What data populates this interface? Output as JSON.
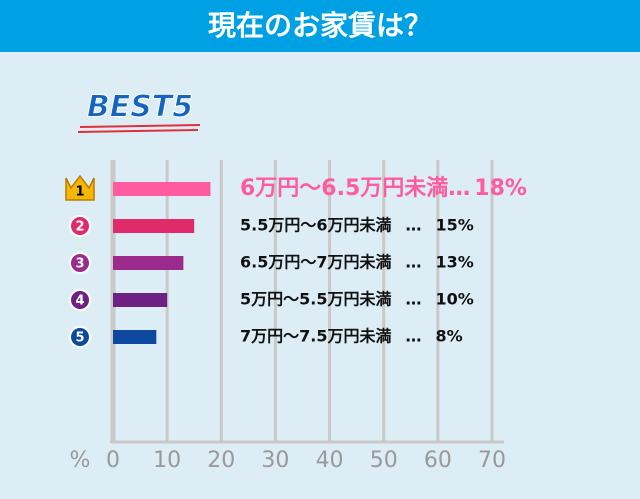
{
  "chart_data": {
    "type": "bar",
    "orientation": "horizontal",
    "title": "現在のお家賃は？",
    "badge": "BEST5",
    "ranks": [
      "1",
      "2",
      "3",
      "4",
      "5"
    ],
    "categories": [
      "6万円〜6.5万円未満",
      "5.5万円〜6万円未満",
      "6.5万円〜7万円未満",
      "5万円〜5.5万円未満",
      "7万円〜7.5万円未満"
    ],
    "separator": "…",
    "values": [
      18,
      15,
      13,
      10,
      8
    ],
    "value_labels": [
      "18%",
      "15%",
      "13%",
      "10%",
      "8%"
    ],
    "colors": [
      "#ff5b9f",
      "#e02b6b",
      "#9b2a8d",
      "#6d2283",
      "#0d4a9f"
    ],
    "x_label": "%",
    "xlim": [
      0,
      70
    ],
    "xticks": [
      0,
      10,
      20,
      30,
      40,
      50,
      60,
      70
    ],
    "grid": true
  }
}
